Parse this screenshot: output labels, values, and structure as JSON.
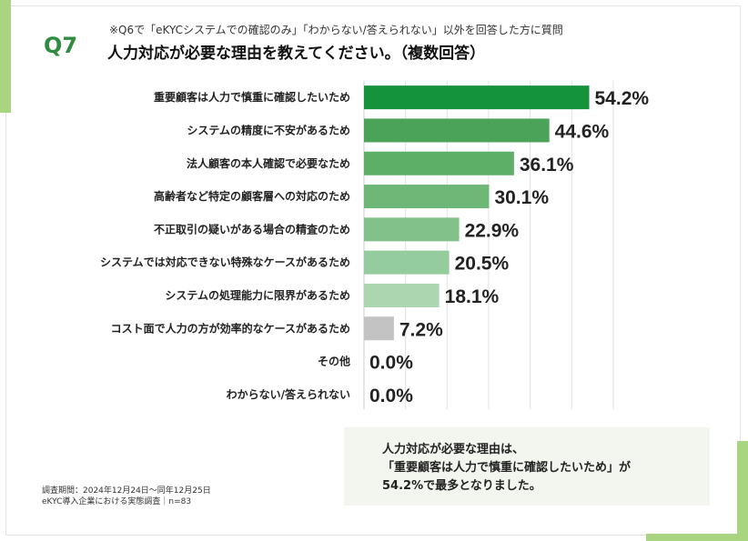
{
  "header": {
    "q_number": "Q7",
    "note": "※Q6で「eKYCシステムでの確認のみ」「わからない/答えられない」以外を回答した方に質問",
    "title": "人力対応が必要な理由を教えてください。（複数回答）"
  },
  "chart_data": {
    "type": "bar",
    "orientation": "horizontal",
    "title": "人力対応が必要な理由を教えてください。（複数回答）",
    "categories": [
      "重要顧客は人力で慎重に確認したいため",
      "システムの精度に不安があるため",
      "法人顧客の本人確認で必要なため",
      "高齢者など特定の顧客層への対応のため",
      "不正取引の疑いがある場合の精査のため",
      "システムでは対応できない特殊なケースがあるため",
      "システムの処理能力に限界があるため",
      "コスト面で人力の方が効率的なケースがあるため",
      "その他",
      "わからない/答えられない"
    ],
    "values": [
      54.2,
      44.6,
      36.1,
      30.1,
      22.9,
      20.5,
      18.1,
      7.2,
      0.0,
      0.0
    ],
    "value_labels": [
      "54.2%",
      "44.6%",
      "36.1%",
      "30.1%",
      "22.9%",
      "20.5%",
      "18.1%",
      "7.2%",
      "0.0%",
      "0.0%"
    ],
    "colors": [
      "#14923c",
      "#4aa356",
      "#5daf68",
      "#6db877",
      "#82c28a",
      "#95cc9d",
      "#abd6af",
      "#c3c3c3",
      "#c3c3c3",
      "#c3c3c3"
    ],
    "xlim": [
      0,
      60
    ],
    "grid": true,
    "xlabel": "",
    "ylabel": ""
  },
  "summary": {
    "line1": "人力対応が必要な理由は、",
    "line2": "「重要顧客は人力で慎重に確認したいため」が",
    "line3": "54.2%で最多となりました。"
  },
  "footnote": {
    "line1": "調査期間：2024年12月24日～同年12月25日",
    "line2": "eKYC導入企業における実態調査｜n=83"
  }
}
